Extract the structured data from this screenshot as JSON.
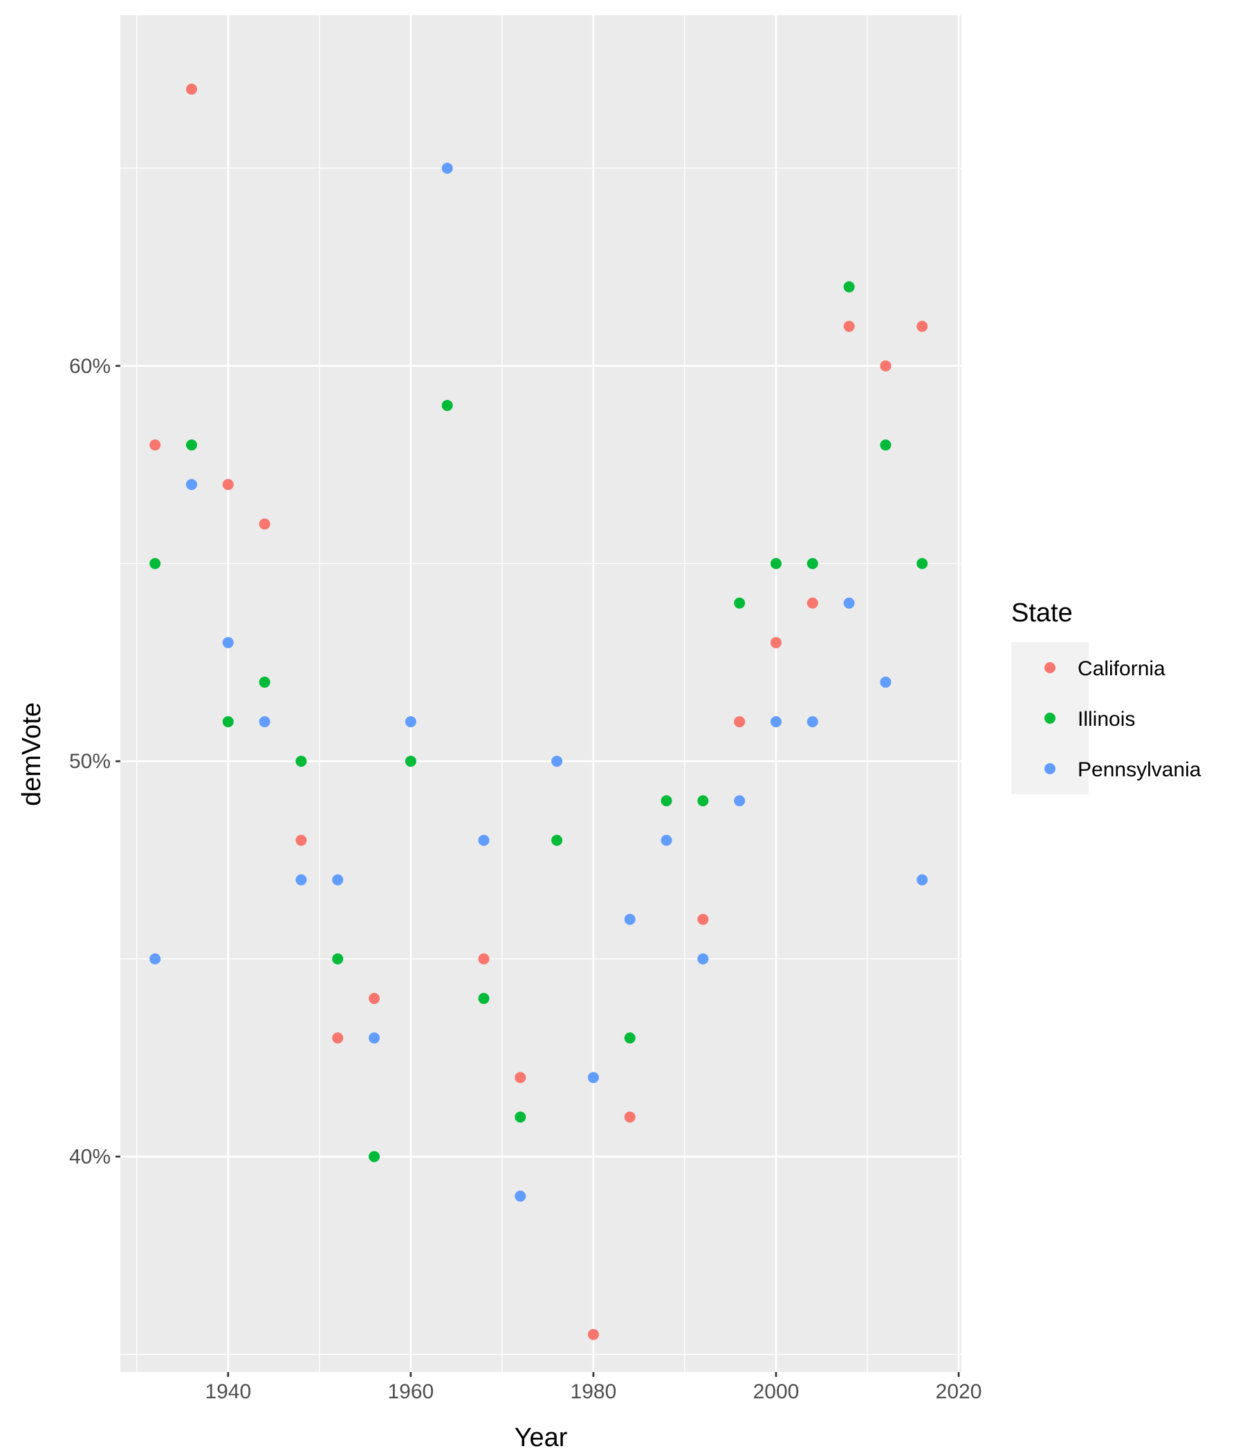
{
  "chart_data": {
    "type": "scatter",
    "title": "",
    "xlabel": "Year",
    "ylabel": "demVote",
    "xlim": [
      1928.2,
      2020.3
    ],
    "ylim": [
      0.3455,
      0.6887
    ],
    "x_ticks": [
      1940,
      1960,
      1980,
      2000,
      2020
    ],
    "x_tick_labels": [
      "1940",
      "1960",
      "1980",
      "2000",
      "2020"
    ],
    "x_minor_ticks": [
      1930,
      1950,
      1970,
      1990,
      2010
    ],
    "y_ticks": [
      0.4,
      0.5,
      0.6
    ],
    "y_tick_labels": [
      "40%",
      "50%",
      "60%"
    ],
    "y_minor_ticks": [
      0.35,
      0.45,
      0.55,
      0.65
    ],
    "grid": true,
    "legend": {
      "title": "State",
      "position": "right"
    },
    "series": [
      {
        "name": "California",
        "color": "#F8766D",
        "x": [
          1932,
          1936,
          1940,
          1944,
          1948,
          1952,
          1956,
          1968,
          1972,
          1980,
          1984,
          1992,
          1996,
          2000,
          2004,
          2008,
          2012,
          2016
        ],
        "y": [
          0.58,
          0.67,
          0.57,
          0.56,
          0.48,
          0.43,
          0.44,
          0.45,
          0.42,
          0.355,
          0.41,
          0.46,
          0.51,
          0.53,
          0.54,
          0.61,
          0.6,
          0.61
        ]
      },
      {
        "name": "Illinois",
        "color": "#00BA38",
        "x": [
          1932,
          1936,
          1940,
          1944,
          1948,
          1952,
          1956,
          1960,
          1964,
          1968,
          1972,
          1976,
          1984,
          1988,
          1992,
          1996,
          2000,
          2004,
          2008,
          2012,
          2016
        ],
        "y": [
          0.55,
          0.58,
          0.51,
          0.52,
          0.5,
          0.45,
          0.4,
          0.5,
          0.59,
          0.44,
          0.41,
          0.48,
          0.43,
          0.49,
          0.49,
          0.54,
          0.55,
          0.55,
          0.62,
          0.58,
          0.55
        ]
      },
      {
        "name": "Pennsylvania",
        "color": "#619CFF",
        "x": [
          1932,
          1936,
          1940,
          1944,
          1948,
          1952,
          1956,
          1960,
          1964,
          1968,
          1972,
          1976,
          1980,
          1984,
          1988,
          1992,
          1996,
          2000,
          2004,
          2008,
          2012,
          2016
        ],
        "y": [
          0.45,
          0.57,
          0.53,
          0.51,
          0.47,
          0.47,
          0.43,
          0.51,
          0.65,
          0.48,
          0.39,
          0.5,
          0.42,
          0.46,
          0.48,
          0.45,
          0.49,
          0.51,
          0.51,
          0.54,
          0.52,
          0.47
        ]
      }
    ]
  }
}
